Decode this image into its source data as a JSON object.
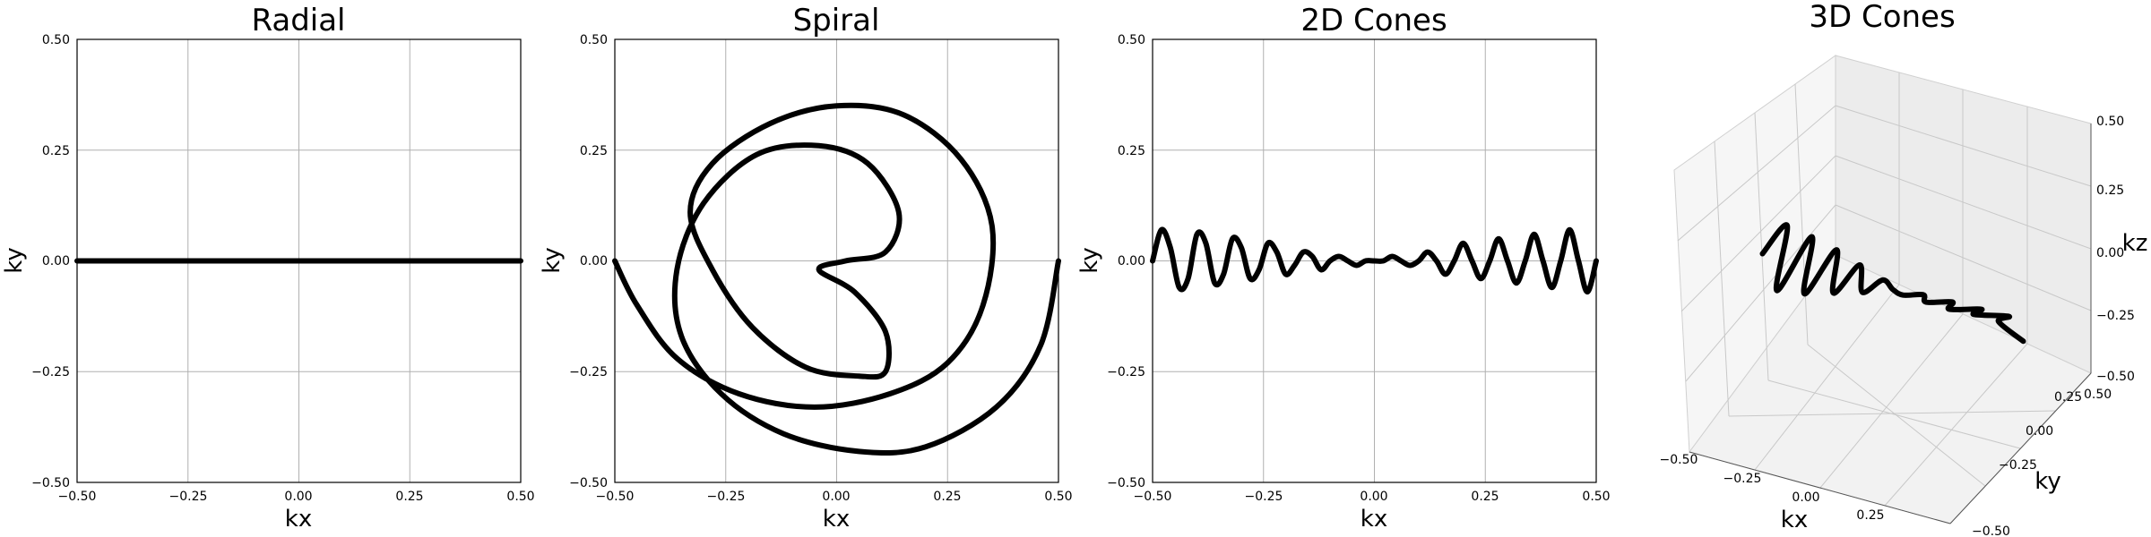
{
  "style": {
    "line_color": "#000000",
    "grid_color": "#b0b0b0",
    "pane_color": "#f2f2f2"
  },
  "chart_data": [
    {
      "type": "line",
      "title": "Radial",
      "xlabel": "kx",
      "ylabel": "ky",
      "xlim": [
        -0.5,
        0.5
      ],
      "ylim": [
        -0.5,
        0.5
      ],
      "xticks": [
        "−0.50",
        "−0.25",
        "0.00",
        "0.25",
        "0.50"
      ],
      "yticks": [
        "−0.50",
        "−0.25",
        "0.00",
        "0.25",
        "0.50"
      ],
      "grid": true,
      "x": [
        -0.5,
        -0.25,
        0.0,
        0.25,
        0.5
      ],
      "y": [
        0.0,
        0.0,
        0.0,
        0.0,
        0.0
      ]
    },
    {
      "type": "line",
      "title": "Spiral",
      "xlabel": "kx",
      "ylabel": "ky",
      "xlim": [
        -0.5,
        0.5
      ],
      "ylim": [
        -0.5,
        0.5
      ],
      "xticks": [
        "−0.50",
        "−0.25",
        "0.00",
        "0.25",
        "0.50"
      ],
      "yticks": [
        "−0.50",
        "−0.25",
        "0.00",
        "0.25",
        "0.50"
      ],
      "grid": true,
      "x": [
        0.5,
        0.46,
        0.36,
        0.2,
        0.05,
        -0.12,
        -0.26,
        -0.35,
        -0.36,
        -0.3,
        -0.18,
        -0.04,
        0.07,
        0.14,
        0.11,
        0.02,
        -0.04,
        0.04,
        0.11,
        0.11,
        0.05,
        -0.07,
        -0.19,
        -0.28,
        -0.33,
        -0.28,
        -0.15,
        0.0,
        0.15,
        0.28,
        0.35,
        0.33,
        0.25,
        0.12,
        -0.05,
        -0.22,
        -0.36,
        -0.45,
        -0.5
      ],
      "y": [
        0.0,
        -0.19,
        -0.33,
        -0.42,
        -0.43,
        -0.39,
        -0.3,
        -0.17,
        -0.02,
        0.13,
        0.24,
        0.26,
        0.22,
        0.11,
        0.02,
        0.0,
        -0.02,
        -0.07,
        -0.16,
        -0.25,
        -0.26,
        -0.24,
        -0.15,
        -0.02,
        0.11,
        0.22,
        0.31,
        0.35,
        0.33,
        0.23,
        0.08,
        -0.1,
        -0.23,
        -0.3,
        -0.33,
        -0.3,
        -0.22,
        -0.1,
        0.0
      ]
    },
    {
      "type": "line",
      "title": "2D Cones",
      "xlabel": "kx",
      "ylabel": "ky",
      "xlim": [
        -0.5,
        0.5
      ],
      "ylim": [
        -0.5,
        0.5
      ],
      "xticks": [
        "−0.50",
        "−0.25",
        "0.00",
        "0.25",
        "0.50"
      ],
      "yticks": [
        "−0.50",
        "−0.25",
        "0.00",
        "0.25",
        "0.50"
      ],
      "grid": true,
      "x": [
        -0.5,
        -0.48,
        -0.46,
        -0.44,
        -0.42,
        -0.4,
        -0.38,
        -0.36,
        -0.34,
        -0.32,
        -0.3,
        -0.28,
        -0.26,
        -0.24,
        -0.22,
        -0.2,
        -0.18,
        -0.16,
        -0.14,
        -0.12,
        -0.1,
        -0.08,
        -0.06,
        -0.04,
        -0.02,
        0.0,
        0.02,
        0.04,
        0.06,
        0.08,
        0.1,
        0.12,
        0.14,
        0.16,
        0.18,
        0.2,
        0.22,
        0.24,
        0.26,
        0.28,
        0.3,
        0.32,
        0.34,
        0.36,
        0.38,
        0.4,
        0.42,
        0.44,
        0.46,
        0.48,
        0.5
      ],
      "y": [
        0.0,
        0.07,
        0.03,
        -0.06,
        -0.04,
        0.06,
        0.04,
        -0.05,
        -0.03,
        0.05,
        0.03,
        -0.04,
        -0.02,
        0.04,
        0.02,
        -0.03,
        -0.01,
        0.02,
        0.01,
        -0.02,
        0.0,
        0.01,
        0.0,
        -0.01,
        0.0,
        0.0,
        0.0,
        0.01,
        0.0,
        -0.01,
        0.0,
        0.02,
        0.0,
        -0.03,
        0.0,
        0.04,
        0.0,
        -0.04,
        0.0,
        0.05,
        0.0,
        -0.05,
        0.0,
        0.06,
        0.0,
        -0.06,
        0.0,
        0.07,
        0.0,
        -0.07,
        0.0
      ]
    },
    {
      "type": "line",
      "title": "3D Cones",
      "xlabel": "kx",
      "ylabel": "ky",
      "zlabel": "kz",
      "xlim": [
        -0.5,
        0.5
      ],
      "ylim": [
        -0.5,
        0.5
      ],
      "zlim": [
        -0.5,
        0.5
      ],
      "xticks": [
        "−0.50",
        "−0.25",
        "0.00",
        "0.25",
        "0.50"
      ],
      "yticks": [
        "−0.50",
        "−0.25",
        "0.00",
        "0.25",
        "0.50"
      ],
      "zticks": [
        "−0.50",
        "−0.25",
        "0.00",
        "0.25",
        "0.50"
      ],
      "grid": true,
      "x": [
        -0.5,
        -0.45,
        -0.4,
        -0.35,
        -0.3,
        -0.25,
        -0.2,
        -0.15,
        -0.1,
        -0.05,
        0.0,
        0.05,
        0.1,
        0.15,
        0.2,
        0.25,
        0.3,
        0.35,
        0.4,
        0.45,
        0.5
      ],
      "y": [
        0.0,
        0.08,
        -0.08,
        0.07,
        -0.07,
        0.06,
        -0.05,
        0.04,
        -0.03,
        0.02,
        0.0,
        -0.02,
        0.03,
        -0.04,
        0.05,
        -0.06,
        0.07,
        -0.07,
        0.08,
        -0.08,
        0.0
      ],
      "z": [
        0.0,
        0.08,
        -0.07,
        0.07,
        -0.06,
        0.05,
        -0.04,
        0.03,
        -0.02,
        0.01,
        0.0,
        0.01,
        -0.02,
        0.03,
        -0.04,
        0.05,
        -0.06,
        0.07,
        -0.07,
        0.08,
        -0.08
      ]
    }
  ]
}
